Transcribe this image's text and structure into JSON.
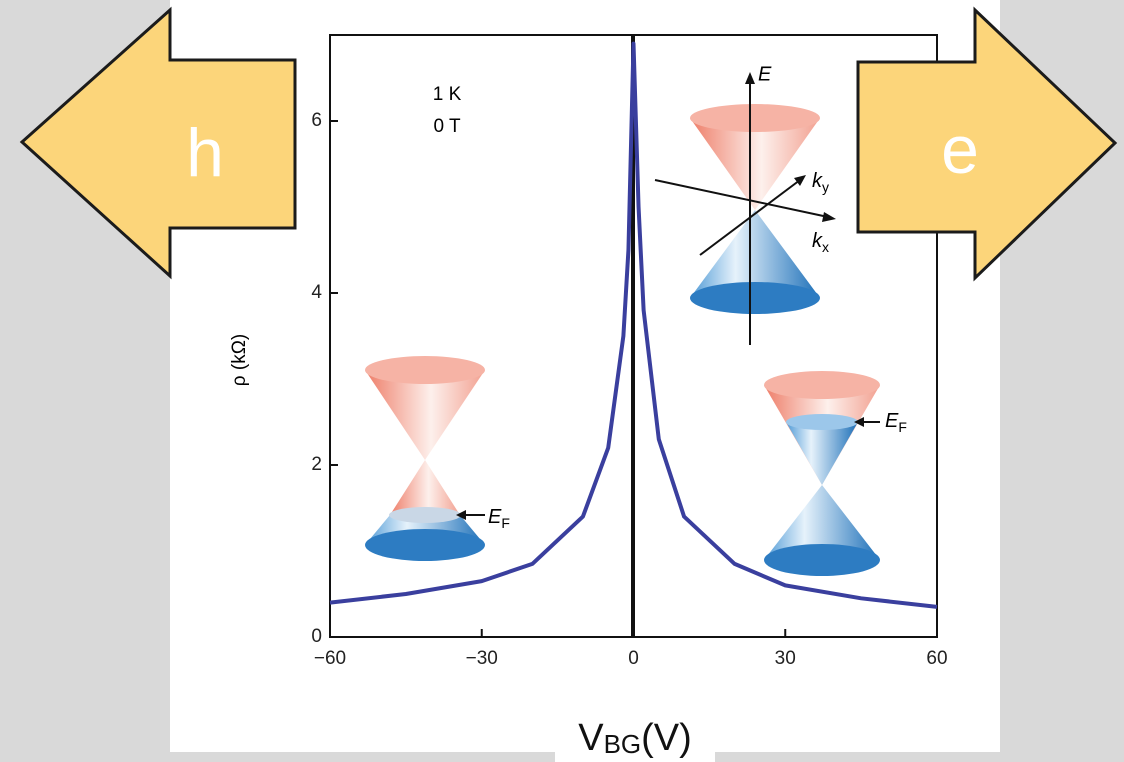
{
  "chart_data": {
    "type": "line",
    "x_label": [
      "V",
      "BG",
      "(V)"
    ],
    "y_label": "ρ (kΩ)",
    "annotations": [
      "1 K",
      "0 T"
    ],
    "carriers": [
      "h",
      "e"
    ],
    "inset_labels": {
      "energy": "E",
      "ky": [
        "k",
        "y"
      ],
      "kx": [
        "k",
        "x"
      ],
      "fermi": [
        "E",
        "F"
      ]
    },
    "x": [
      -60,
      -45,
      -30,
      -20,
      -10,
      -5,
      -2,
      -1,
      0,
      1,
      2,
      5,
      10,
      20,
      30,
      45,
      60
    ],
    "values": [
      0.4,
      0.5,
      0.65,
      0.85,
      1.4,
      2.2,
      3.5,
      4.5,
      6.9,
      5.0,
      3.8,
      2.3,
      1.4,
      0.85,
      0.6,
      0.45,
      0.35
    ],
    "color": "#3a3f9e",
    "xlim": [
      -60,
      60
    ],
    "xticks": [
      {
        "value": -60,
        "label": "−60"
      },
      {
        "value": -30,
        "label": "−30"
      },
      0,
      30,
      60
    ],
    "ylim": [
      0,
      7
    ],
    "yticks": [
      0,
      2,
      4,
      6
    ]
  }
}
